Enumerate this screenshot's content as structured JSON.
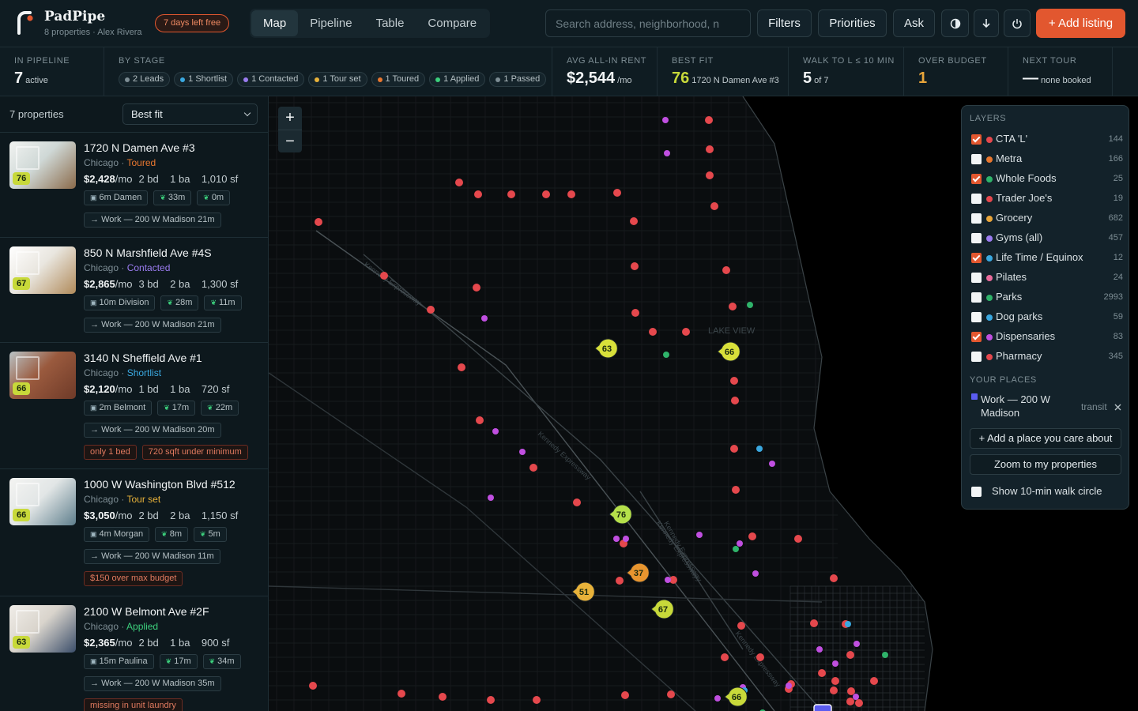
{
  "app": {
    "name": "PadPipe",
    "subtitle": "8 properties · Alex Rivera",
    "trial": "7 days left free"
  },
  "nav": {
    "tabs": [
      "Map",
      "Pipeline",
      "Table",
      "Compare"
    ],
    "active": "Map"
  },
  "search": {
    "placeholder": "Search address, neighborhood, n"
  },
  "toolbar": {
    "filters": "Filters",
    "priorities": "Priorities",
    "ask": "Ask",
    "add_listing": "+ Add listing"
  },
  "stats": {
    "pipeline_label": "IN PIPELINE",
    "pipeline_value": "7",
    "pipeline_unit": "active",
    "stage_label": "BY STAGE",
    "stages": [
      {
        "label": "2 Leads",
        "color": "#7d8d94"
      },
      {
        "label": "1 Shortlist",
        "color": "#3aa8e0"
      },
      {
        "label": "1 Contacted",
        "color": "#9b7cf0"
      },
      {
        "label": "1 Tour set",
        "color": "#e8b23a"
      },
      {
        "label": "1 Toured",
        "color": "#e8772f"
      },
      {
        "label": "1 Applied",
        "color": "#3ccf7c"
      },
      {
        "label": "1 Passed",
        "color": "#7d8d94"
      }
    ],
    "rent_label": "AVG ALL-IN RENT",
    "rent_value": "$2,544",
    "rent_unit": "/mo",
    "fit_label": "BEST FIT",
    "fit_value": "76",
    "fit_addr": "1720 N Damen Ave #3",
    "walk_label": "WALK TO L ≤ 10 MIN",
    "walk_value": "5",
    "walk_unit": "of 7",
    "budget_label": "OVER BUDGET",
    "budget_value": "1",
    "tour_label": "NEXT TOUR",
    "tour_value": "—",
    "tour_unit": "none booked"
  },
  "sidebar": {
    "count": "7 properties",
    "sort": "Best fit",
    "listings": [
      {
        "address": "1720 N Damen Ave #3",
        "city": "Chicago",
        "status": "Toured",
        "status_color": "#e8772f",
        "score": "76",
        "score_color": "#c8d93a",
        "price": "$2,428",
        "per": "/mo",
        "specs": "2 bd    1 ba    1,010 sf",
        "transit": "6m Damen",
        "grocery": "33m",
        "park": "0m",
        "commute": "Work — 200 W Madison 21m",
        "warnings": [],
        "photo": [
          "#cfd8d6",
          "#8a6a4a",
          "#f1f3f1"
        ]
      },
      {
        "address": "850 N Marshfield Ave #4S",
        "city": "Chicago",
        "status": "Contacted",
        "status_color": "#9b7cf0",
        "score": "67",
        "score_color": "#c8d93a",
        "price": "$2,865",
        "per": "/mo",
        "specs": "3 bd    2 ba    1,300 sf",
        "transit": "10m Division",
        "grocery": "28m",
        "park": "11m",
        "commute": "Work — 200 W Madison 21m",
        "warnings": [],
        "photo": [
          "#e9e6df",
          "#b08a5a",
          "#ffffff"
        ]
      },
      {
        "address": "3140 N Sheffield Ave #1",
        "city": "Chicago",
        "status": "Shortlist",
        "status_color": "#3aa8e0",
        "score": "66",
        "score_color": "#c8d93a",
        "price": "$2,120",
        "per": "/mo",
        "specs": "1 bd    1 ba    720 sf",
        "transit": "2m Belmont",
        "grocery": "17m",
        "park": "22m",
        "commute": "Work — 200 W Madison 20m",
        "warnings": [
          "only 1 bed",
          "720 sqft under minimum"
        ],
        "photo": [
          "#9a5a3e",
          "#6e3a28",
          "#b9c3c6"
        ]
      },
      {
        "address": "1000 W Washington Blvd #512",
        "city": "Chicago",
        "status": "Tour set",
        "status_color": "#e8b23a",
        "score": "66",
        "score_color": "#c8d93a",
        "price": "$3,050",
        "per": "/mo",
        "specs": "2 bd    2 ba    1,150 sf",
        "transit": "4m Morgan",
        "grocery": "8m",
        "park": "5m",
        "commute": "Work — 200 W Madison 11m",
        "warnings": [
          "$150 over max budget"
        ],
        "photo": [
          "#e2e6e6",
          "#5e7e8c",
          "#f4f4f2"
        ]
      },
      {
        "address": "2100 W Belmont Ave #2F",
        "city": "Chicago",
        "status": "Applied",
        "status_color": "#3ccf7c",
        "score": "63",
        "score_color": "#c8d93a",
        "price": "$2,365",
        "per": "/mo",
        "specs": "2 bd    1 ba    900 sf",
        "transit": "15m Paulina",
        "grocery": "17m",
        "park": "34m",
        "commute": "Work — 200 W Madison 35m",
        "warnings": [
          "missing in unit laundry"
        ],
        "photo": [
          "#d9d4cc",
          "#3b4e6a",
          "#f0ede8"
        ]
      }
    ]
  },
  "map": {
    "district_label": "LAKE VIEW",
    "street_labels": [
      "Kennedy Expressway",
      "Kennedy Expressway",
      "Kennedy Expressway",
      "Kennedy Expressway",
      "Kennedy Expressway"
    ],
    "score_pins": [
      "63",
      "66",
      "76",
      "37",
      "51",
      "67",
      "66"
    ]
  },
  "layers": {
    "title": "LAYERS",
    "items": [
      {
        "name": "CTA 'L'",
        "count": "144",
        "color": "#e5484d",
        "checked": true
      },
      {
        "name": "Metra",
        "count": "166",
        "color": "#e8772f",
        "checked": false
      },
      {
        "name": "Whole Foods",
        "count": "25",
        "color": "#2fb36a",
        "checked": true
      },
      {
        "name": "Trader Joe's",
        "count": "19",
        "color": "#e5484d",
        "checked": false
      },
      {
        "name": "Grocery",
        "count": "682",
        "color": "#e8a53a",
        "checked": false
      },
      {
        "name": "Gyms (all)",
        "count": "457",
        "color": "#9b7cf0",
        "checked": false
      },
      {
        "name": "Life Time / Equinox",
        "count": "12",
        "color": "#3aa8e0",
        "checked": true
      },
      {
        "name": "Pilates",
        "count": "24",
        "color": "#e86a9a",
        "checked": false
      },
      {
        "name": "Parks",
        "count": "2993",
        "color": "#2fb36a",
        "checked": false
      },
      {
        "name": "Dog parks",
        "count": "59",
        "color": "#3aa8e0",
        "checked": false
      },
      {
        "name": "Dispensaries",
        "count": "83",
        "color": "#c04fe0",
        "checked": true
      },
      {
        "name": "Pharmacy",
        "count": "345",
        "color": "#e5484d",
        "checked": false
      }
    ],
    "places_title": "YOUR PLACES",
    "place_name": "Work — 200 W Madison",
    "place_mode": "transit",
    "add_place": "+ Add a place you care about",
    "zoom_props": "Zoom to my properties",
    "walk_circle": "Show 10-min walk circle"
  }
}
